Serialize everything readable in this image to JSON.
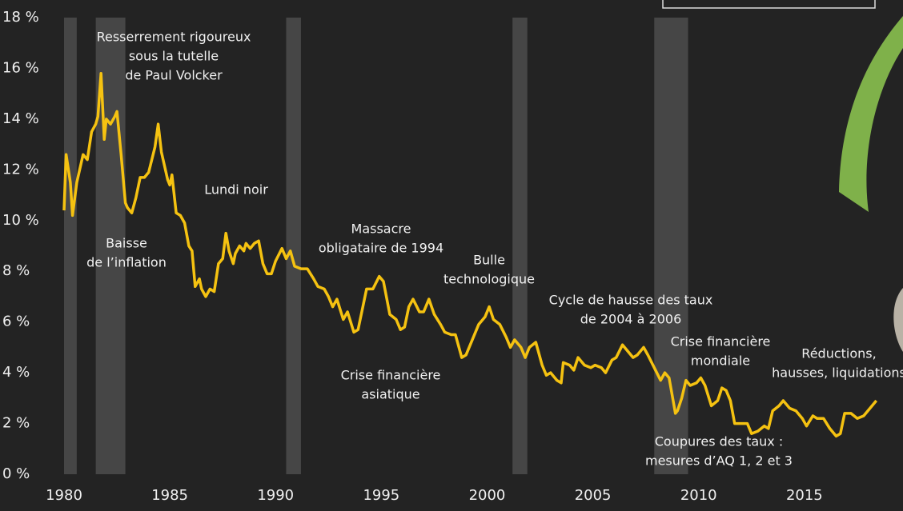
{
  "chart_data": {
    "type": "line",
    "x": [
      1980.0,
      1980.1,
      1980.3,
      1980.4,
      1980.6,
      1980.9,
      1981.1,
      1981.3,
      1981.5,
      1981.6,
      1981.75,
      1981.9,
      1982.0,
      1982.2,
      1982.4,
      1982.5,
      1982.7,
      1982.9,
      1983.0,
      1983.2,
      1983.4,
      1983.6,
      1983.8,
      1984.0,
      1984.3,
      1984.45,
      1984.6,
      1984.9,
      1985.0,
      1985.1,
      1985.3,
      1985.5,
      1985.7,
      1985.9,
      1986.05,
      1986.2,
      1986.4,
      1986.5,
      1986.7,
      1986.9,
      1987.1,
      1987.3,
      1987.5,
      1987.65,
      1987.8,
      1988.0,
      1988.1,
      1988.3,
      1988.5,
      1988.6,
      1988.8,
      1989.0,
      1989.2,
      1989.4,
      1989.6,
      1989.8,
      1990.0,
      1990.3,
      1990.5,
      1990.7,
      1990.9,
      1991.2,
      1991.5,
      1991.8,
      1992.0,
      1992.3,
      1992.5,
      1992.7,
      1992.9,
      1993.2,
      1993.4,
      1993.7,
      1993.9,
      1994.1,
      1994.3,
      1994.6,
      1994.9,
      1995.1,
      1995.4,
      1995.7,
      1995.9,
      1996.1,
      1996.3,
      1996.5,
      1996.8,
      1997.0,
      1997.25,
      1997.5,
      1997.8,
      1998.0,
      1998.3,
      1998.5,
      1998.8,
      1999.0,
      1999.3,
      1999.6,
      1999.9,
      2000.1,
      2000.3,
      2000.6,
      2000.9,
      2001.1,
      2001.3,
      2001.6,
      2001.8,
      2002.0,
      2002.3,
      2002.6,
      2002.8,
      2003.0,
      2003.3,
      2003.5,
      2003.6,
      2003.9,
      2004.1,
      2004.3,
      2004.6,
      2004.9,
      2005.1,
      2005.4,
      2005.6,
      2005.9,
      2006.1,
      2006.4,
      2006.6,
      2006.9,
      2007.1,
      2007.4,
      2007.6,
      2007.9,
      2008.2,
      2008.4,
      2008.6,
      2008.9,
      2009.0,
      2009.2,
      2009.4,
      2009.6,
      2009.9,
      2010.1,
      2010.3,
      2010.6,
      2010.9,
      2011.1,
      2011.3,
      2011.5,
      2011.7,
      2012.0,
      2012.3,
      2012.5,
      2012.8,
      2013.1,
      2013.3,
      2013.5,
      2013.8,
      2014.0,
      2014.3,
      2014.6,
      2014.9,
      2015.1,
      2015.4,
      2015.6,
      2015.9,
      2016.2,
      2016.5,
      2016.7,
      2016.9,
      2017.2,
      2017.5,
      2017.8,
      2018.1,
      2018.4
    ],
    "values": [
      10.4,
      12.6,
      11.5,
      10.2,
      11.5,
      12.6,
      12.4,
      13.5,
      13.8,
      14.1,
      15.8,
      13.2,
      14.0,
      13.8,
      14.1,
      14.3,
      12.6,
      10.7,
      10.5,
      10.3,
      10.9,
      11.7,
      11.7,
      11.9,
      12.9,
      13.8,
      12.7,
      11.6,
      11.4,
      11.8,
      10.3,
      10.2,
      9.9,
      9.0,
      8.8,
      7.4,
      7.7,
      7.3,
      7.0,
      7.3,
      7.2,
      8.3,
      8.5,
      9.5,
      8.8,
      8.3,
      8.7,
      9.0,
      8.8,
      9.1,
      8.9,
      9.1,
      9.2,
      8.3,
      7.9,
      7.9,
      8.4,
      8.9,
      8.5,
      8.8,
      8.2,
      8.1,
      8.1,
      7.7,
      7.4,
      7.3,
      7.0,
      6.6,
      6.9,
      6.1,
      6.4,
      5.6,
      5.7,
      6.5,
      7.3,
      7.3,
      7.8,
      7.6,
      6.3,
      6.1,
      5.7,
      5.8,
      6.6,
      6.9,
      6.4,
      6.4,
      6.9,
      6.3,
      5.9,
      5.6,
      5.5,
      5.5,
      4.6,
      4.7,
      5.3,
      5.9,
      6.2,
      6.6,
      6.1,
      5.9,
      5.4,
      5.0,
      5.3,
      5.0,
      4.6,
      5.0,
      5.2,
      4.3,
      3.9,
      4.0,
      3.7,
      3.6,
      4.4,
      4.3,
      4.1,
      4.6,
      4.3,
      4.2,
      4.3,
      4.2,
      4.0,
      4.5,
      4.6,
      5.1,
      4.9,
      4.6,
      4.7,
      5.0,
      4.7,
      4.2,
      3.7,
      4.0,
      3.8,
      2.4,
      2.5,
      3.0,
      3.7,
      3.5,
      3.6,
      3.8,
      3.5,
      2.7,
      2.9,
      3.4,
      3.3,
      2.9,
      2.0,
      2.0,
      2.0,
      1.6,
      1.7,
      1.9,
      1.8,
      2.5,
      2.7,
      2.9,
      2.6,
      2.5,
      2.2,
      1.9,
      2.3,
      2.2,
      2.2,
      1.8,
      1.5,
      1.6,
      2.4,
      2.4,
      2.2,
      2.3,
      2.6,
      2.9
    ],
    "color": "#f5c211",
    "recessions": [
      [
        1980.0,
        1980.6
      ],
      [
        1981.5,
        1982.9
      ],
      [
        1990.5,
        1991.2
      ],
      [
        2001.2,
        2001.9
      ],
      [
        2007.9,
        2009.5
      ]
    ],
    "xlim": [
      1980,
      2018.6
    ],
    "xticks": [
      1980,
      1985,
      1990,
      1995,
      2000,
      2005,
      2010,
      2015
    ],
    "ylim": [
      0,
      18
    ],
    "yticks": [
      {
        "value": 0,
        "label": "0 %"
      },
      {
        "value": 2,
        "label": "2 %"
      },
      {
        "value": 4,
        "label": "4 %"
      },
      {
        "value": 6,
        "label": "6 %"
      },
      {
        "value": 8,
        "label": "8 %"
      },
      {
        "value": 10,
        "label": "10 %"
      },
      {
        "value": 12,
        "label": "12 %"
      },
      {
        "value": 14,
        "label": "14 %"
      },
      {
        "value": 16,
        "label": "16 %"
      },
      {
        "value": 18,
        "label": "18 %"
      }
    ],
    "annotations": [
      [
        "Resserrement rigoureux",
        "sous la tutelle",
        "de Paul Volcker"
      ],
      [
        "Baisse",
        "de l’inflation"
      ],
      [
        "Lundi noir"
      ],
      [
        "Massacre",
        "obligataire de 1994"
      ],
      [
        "Bulle",
        "technologique"
      ],
      [
        "Crise financière",
        "asiatique"
      ],
      [
        "Cycle de hausse des taux",
        "de 2004 à 2006"
      ],
      [
        "Crise financière",
        "mondiale"
      ],
      [
        "Réductions,",
        "hausses, liquidations"
      ],
      [
        "Coupures des taux :",
        "mesures d’AQ 1, 2 et 3"
      ]
    ]
  }
}
